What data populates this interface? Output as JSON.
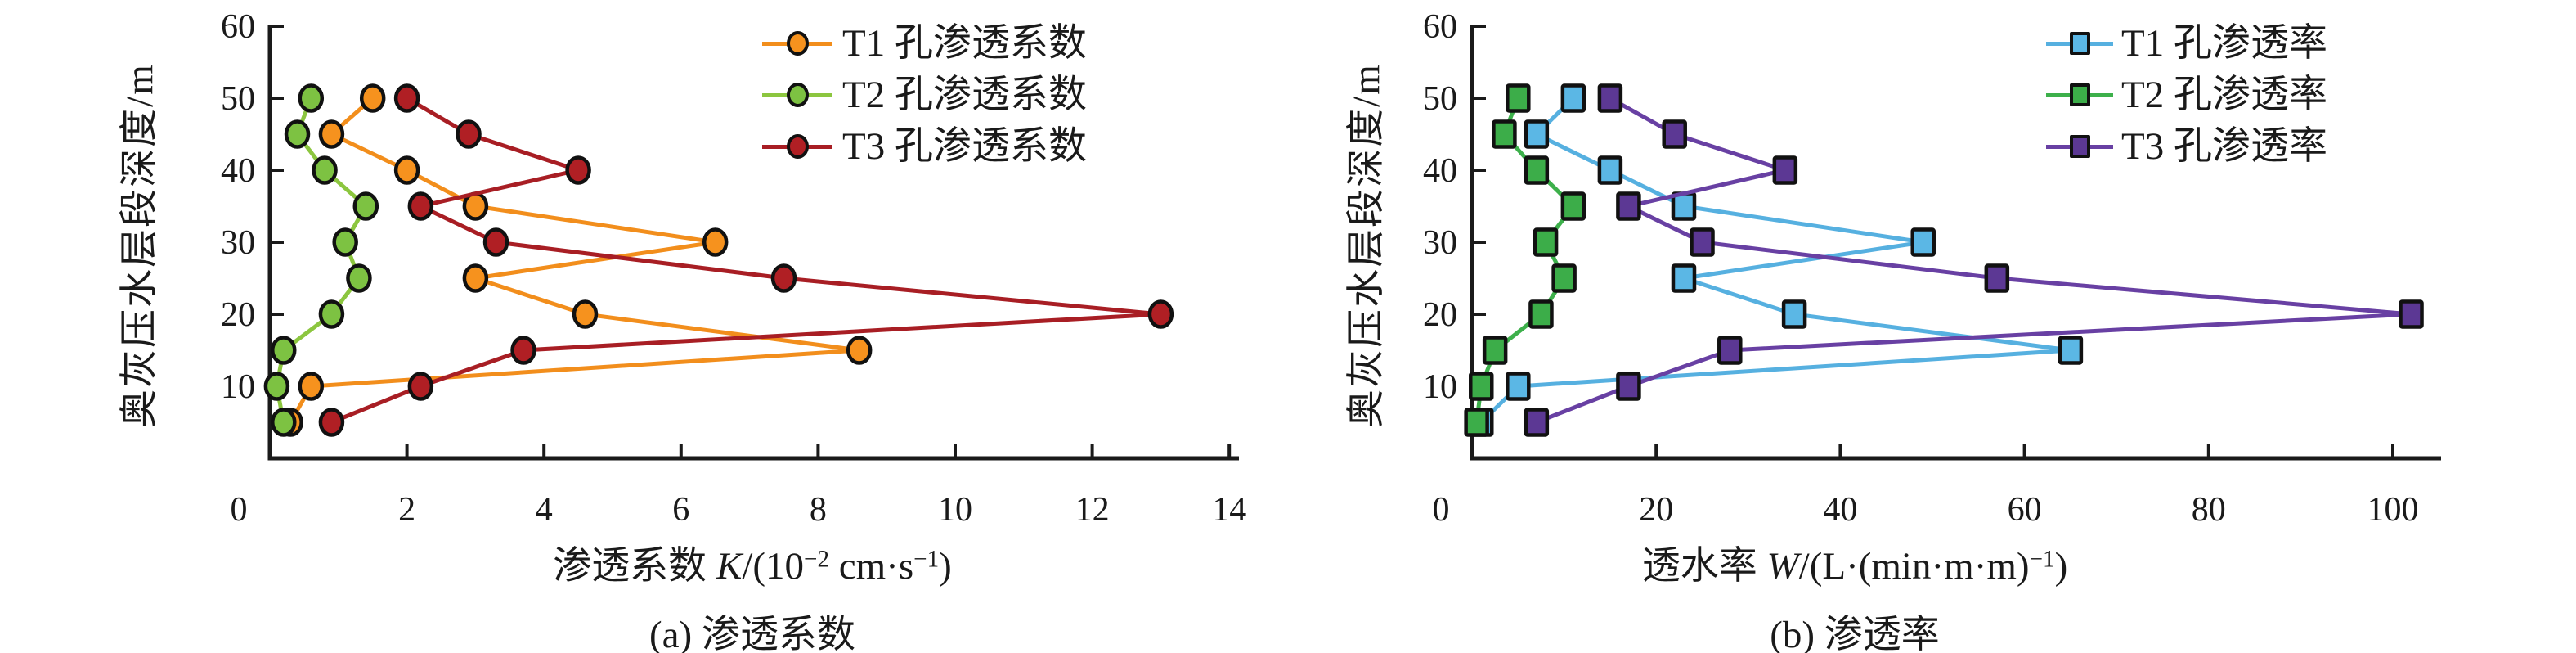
{
  "figure": {
    "background": "#ffffff",
    "text_color": "#1a1a1a",
    "y_axis_title": "奥灰压水层段深度/m"
  },
  "chart_data": [
    {
      "type": "line",
      "id": "a",
      "caption": "(a) 渗透系数",
      "xlabel": "渗透系数 K/(10⁻² cm·s⁻¹)",
      "xlabel_parts": [
        {
          "t": "渗透系数 "
        },
        {
          "t": "K",
          "italic": true
        },
        {
          "t": "/(10"
        },
        {
          "t": "−2",
          "sup": true
        },
        {
          "t": " cm·s"
        },
        {
          "t": "−1",
          "sup": true
        },
        {
          "t": ")"
        }
      ],
      "ylabel": "奥灰压水层段深度/m",
      "xlim": [
        0,
        14
      ],
      "ylim": [
        0,
        60
      ],
      "xticks": [
        0,
        2,
        4,
        6,
        8,
        10,
        12,
        14
      ],
      "yticks": [
        10,
        20,
        30,
        40,
        50,
        60
      ],
      "grid": false,
      "legend_position": "upper right inside",
      "marker_outline": "#111111",
      "depths_m": [
        50,
        45,
        40,
        35,
        30,
        25,
        20,
        15,
        10,
        5
      ],
      "series": [
        {
          "name": "T1 孔渗透系数",
          "marker": "circle",
          "color": "#F6921E",
          "line_color": "#F28E1C",
          "values": [
            1.5,
            0.9,
            2.0,
            3.0,
            6.5,
            3.0,
            4.6,
            8.6,
            0.6,
            0.3
          ]
        },
        {
          "name": "T2 孔渗透系数",
          "marker": "circle",
          "color": "#7DC242",
          "line_color": "#8CC63F",
          "values": [
            0.6,
            0.4,
            0.8,
            1.4,
            1.1,
            1.3,
            0.9,
            0.2,
            0.1,
            0.2
          ]
        },
        {
          "name": "T3 孔渗透系数",
          "marker": "circle",
          "color": "#B01F24",
          "line_color": "#A81E24",
          "values": [
            2.0,
            2.9,
            4.5,
            2.2,
            3.3,
            7.5,
            13.0,
            3.7,
            2.2,
            0.9
          ]
        }
      ]
    },
    {
      "type": "line",
      "id": "b",
      "caption": "(b) 渗透率",
      "xlabel": "透水率 W/(L·(min·m·m)⁻¹)",
      "xlabel_parts": [
        {
          "t": "透水率 "
        },
        {
          "t": "W",
          "italic": true
        },
        {
          "t": "/(L·(min·m·m)"
        },
        {
          "t": "−1",
          "sup": true
        },
        {
          "t": ")"
        }
      ],
      "ylabel": "奥灰压水层段深度/m",
      "xlim": [
        0,
        105
      ],
      "ylim": [
        0,
        60
      ],
      "xticks": [
        0,
        20,
        40,
        60,
        80,
        100
      ],
      "yticks": [
        10,
        20,
        30,
        40,
        50,
        60
      ],
      "grid": false,
      "legend_position": "upper right inside",
      "marker_outline": "#111111",
      "depths_m": [
        50,
        45,
        40,
        35,
        30,
        25,
        20,
        15,
        10,
        5
      ],
      "series": [
        {
          "name": "T1 孔渗透率",
          "marker": "square",
          "color": "#5BB7E5",
          "line_color": "#56B0E0",
          "values": [
            11,
            7,
            15,
            23,
            49,
            23,
            35,
            65,
            5,
            1
          ]
        },
        {
          "name": "T2 孔渗透率",
          "marker": "square",
          "color": "#3CAD49",
          "line_color": "#3DB04B",
          "values": [
            5,
            3.5,
            7,
            11,
            8,
            10,
            7.5,
            2.5,
            1,
            0.5
          ]
        },
        {
          "name": "T3 孔渗透率",
          "marker": "square",
          "color": "#5C3894",
          "line_color": "#6840A3",
          "values": [
            15,
            22,
            34,
            17,
            25,
            57,
            102,
            28,
            17,
            7
          ]
        }
      ]
    }
  ]
}
